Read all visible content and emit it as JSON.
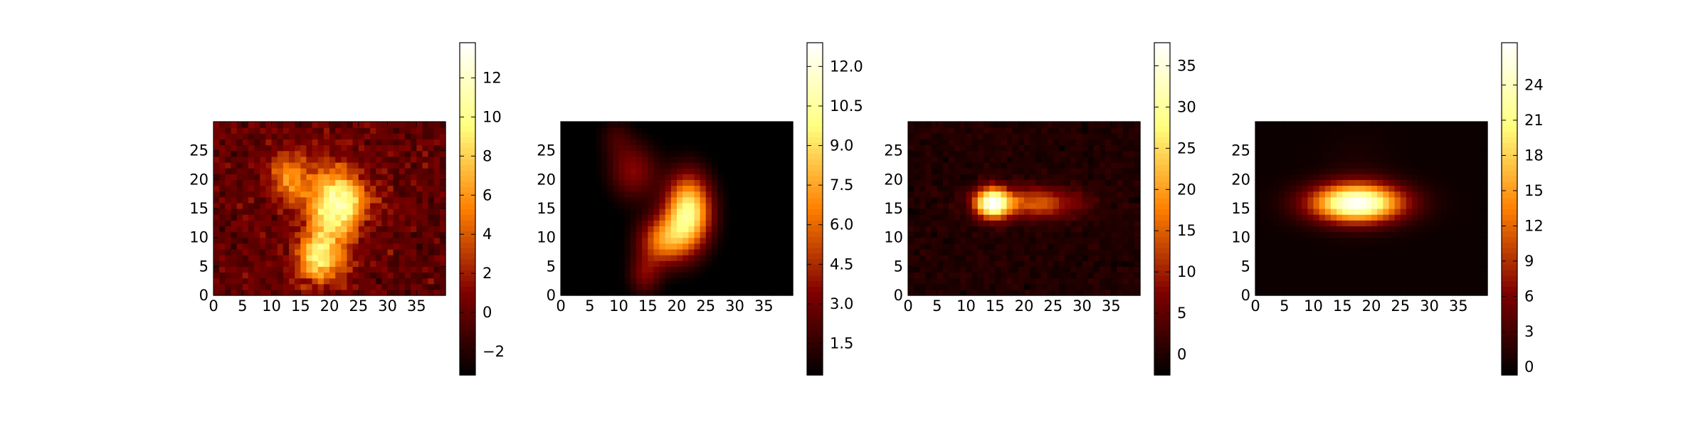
{
  "chart_data": [
    {
      "type": "heatmap",
      "title": "",
      "xlabel": "",
      "ylabel": "",
      "shape": [
        30,
        40
      ],
      "xlim": [
        0,
        40
      ],
      "ylim": [
        0,
        30
      ],
      "x_ticks": [
        "0",
        "5",
        "10",
        "15",
        "20",
        "25",
        "30",
        "35"
      ],
      "y_ticks": [
        "0",
        "5",
        "10",
        "15",
        "20",
        "25"
      ],
      "colormap": "afmhot",
      "colorbar_range": [
        -3.2,
        13.8
      ],
      "colorbar_ticks": [
        "−2",
        "0",
        "2",
        "4",
        "6",
        "8",
        "10",
        "12"
      ],
      "colorbar_tick_values": [
        -2,
        0,
        2,
        4,
        6,
        8,
        10,
        12
      ],
      "noise": 1.5,
      "components": [
        {
          "x": 20,
          "y": 13,
          "dx": 3,
          "dy": 6,
          "amp": 7
        },
        {
          "x": 12.5,
          "y": 20,
          "dx": 2.5,
          "dy": 3,
          "amp": 6
        },
        {
          "x": 22,
          "y": 16,
          "dx": 3.5,
          "dy": 3,
          "amp": 6
        },
        {
          "x": 17,
          "y": 6,
          "dx": 2.5,
          "dy": 3,
          "amp": 7
        }
      ]
    },
    {
      "type": "heatmap",
      "title": "",
      "xlabel": "",
      "ylabel": "",
      "shape": [
        30,
        40
      ],
      "xlim": [
        0,
        40
      ],
      "ylim": [
        0,
        30
      ],
      "x_ticks": [
        "0",
        "5",
        "10",
        "15",
        "20",
        "25",
        "30",
        "35"
      ],
      "y_ticks": [
        "0",
        "5",
        "10",
        "15",
        "20",
        "25"
      ],
      "colormap": "afmhot",
      "colorbar_range": [
        0.3,
        12.9
      ],
      "colorbar_ticks": [
        "1.5",
        "3.0",
        "4.5",
        "6.0",
        "7.5",
        "9.0",
        "10.5",
        "12.0"
      ],
      "colorbar_tick_values": [
        1.5,
        3.0,
        4.5,
        6.0,
        7.5,
        9.0,
        10.5,
        12.0
      ],
      "noise": 0,
      "components": [
        {
          "x": 21.5,
          "y": 14,
          "dx": 2.8,
          "dy": 4.5,
          "amp": 10
        },
        {
          "x": 17,
          "y": 9,
          "dx": 3,
          "dy": 3,
          "amp": 6
        },
        {
          "x": 14,
          "y": 3,
          "dx": 2,
          "dy": 2.5,
          "amp": 3
        },
        {
          "x": 12,
          "y": 21,
          "dx": 3,
          "dy": 3.5,
          "amp": 3.5
        },
        {
          "x": 9,
          "y": 27,
          "dx": 2,
          "dy": 2.5,
          "amp": 1.5
        }
      ]
    },
    {
      "type": "heatmap",
      "title": "",
      "xlabel": "",
      "ylabel": "",
      "shape": [
        30,
        40
      ],
      "xlim": [
        0,
        40
      ],
      "ylim": [
        0,
        30
      ],
      "x_ticks": [
        "0",
        "5",
        "10",
        "15",
        "20",
        "25",
        "30",
        "35"
      ],
      "y_ticks": [
        "0",
        "5",
        "10",
        "15",
        "20",
        "25"
      ],
      "colormap": "afmhot",
      "colorbar_range": [
        -2.5,
        37.8
      ],
      "colorbar_ticks": [
        "0",
        "5",
        "10",
        "15",
        "20",
        "25",
        "30",
        "35"
      ],
      "colorbar_tick_values": [
        0,
        5,
        10,
        15,
        20,
        25,
        30,
        35
      ],
      "noise": 1.5,
      "components": [
        {
          "x": 14,
          "y": 15.5,
          "dx": 2,
          "dy": 1.8,
          "amp": 34
        },
        {
          "x": 21,
          "y": 15.5,
          "dx": 5.5,
          "dy": 1.8,
          "amp": 15
        }
      ]
    },
    {
      "type": "heatmap",
      "title": "",
      "xlabel": "",
      "ylabel": "",
      "shape": [
        30,
        40
      ],
      "xlim": [
        0,
        40
      ],
      "ylim": [
        0,
        30
      ],
      "x_ticks": [
        "0",
        "5",
        "10",
        "15",
        "20",
        "25",
        "30",
        "35"
      ],
      "y_ticks": [
        "0",
        "5",
        "10",
        "15",
        "20",
        "25"
      ],
      "colormap": "afmhot",
      "colorbar_range": [
        -0.7,
        27.6
      ],
      "colorbar_ticks": [
        "0",
        "3",
        "6",
        "9",
        "12",
        "15",
        "18",
        "21",
        "24"
      ],
      "colorbar_tick_values": [
        0,
        3,
        6,
        9,
        12,
        15,
        18,
        21,
        24
      ],
      "noise": 0,
      "components": [
        {
          "x": 17,
          "y": 15.5,
          "dx": 5.5,
          "dy": 2.3,
          "amp": 27
        },
        {
          "x": 17,
          "y": 20,
          "dx": 4,
          "dy": 5,
          "amp": 1
        }
      ]
    }
  ]
}
